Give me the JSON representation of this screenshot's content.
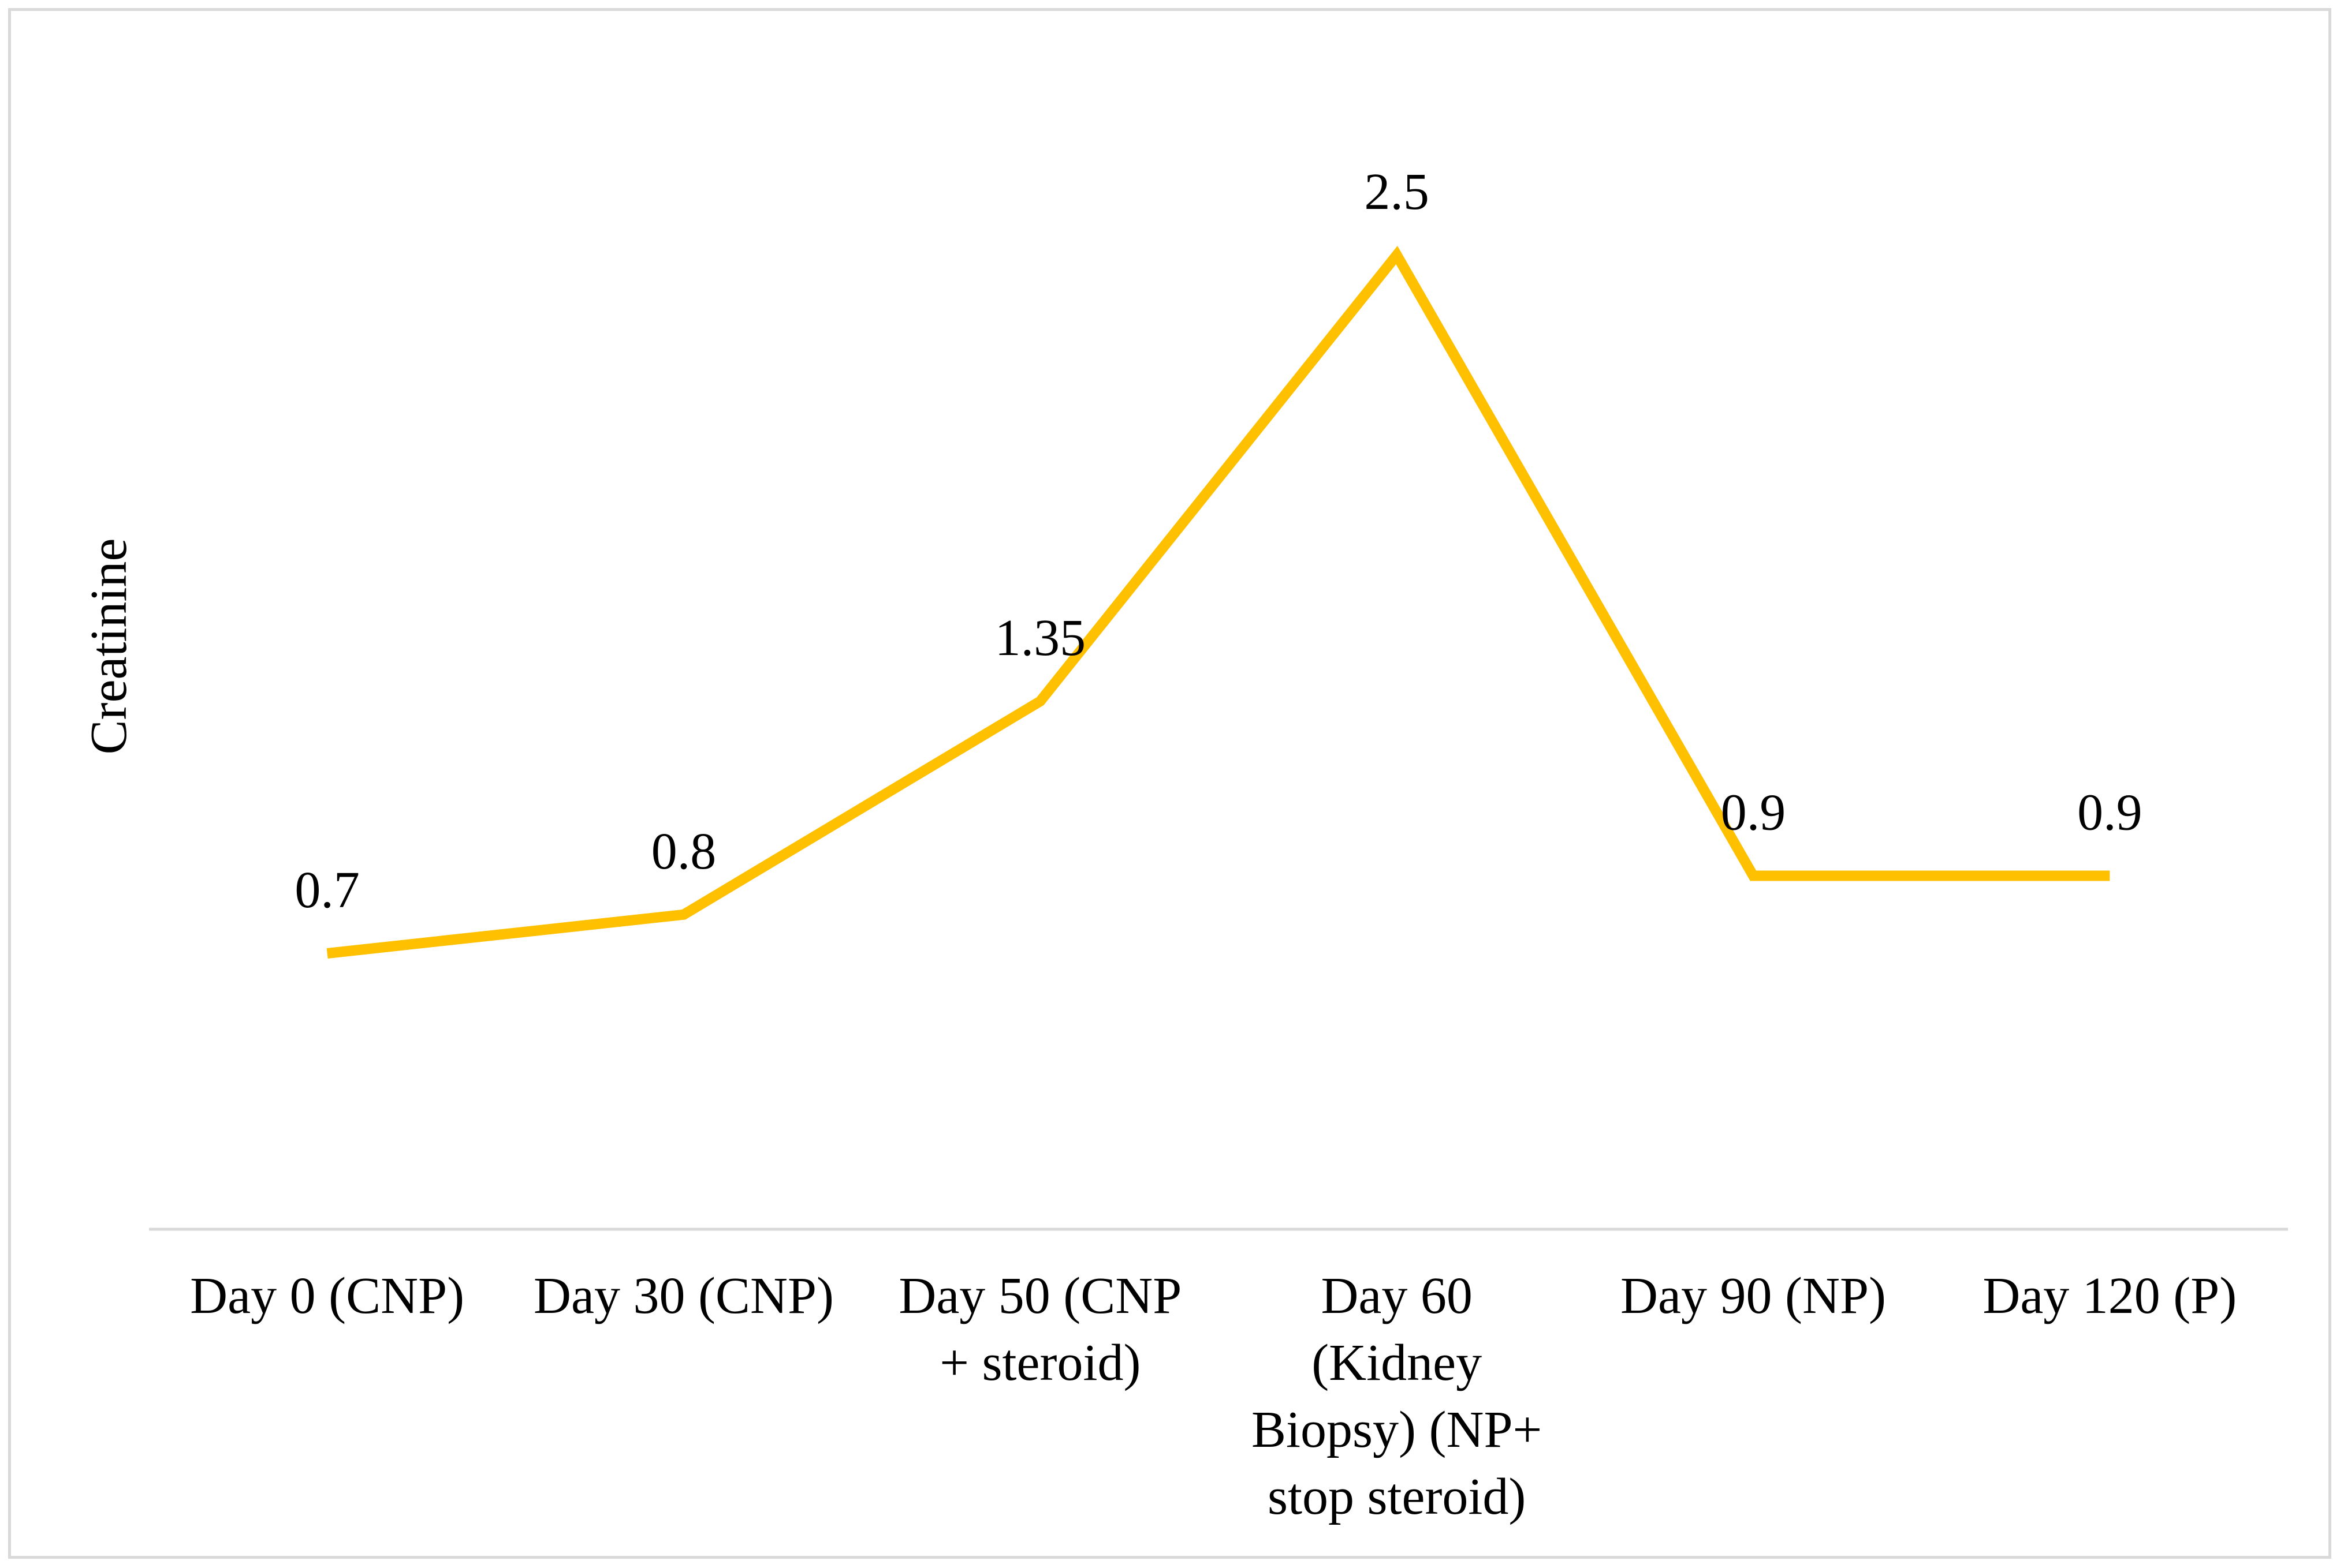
{
  "chart_data": {
    "type": "line",
    "categories": [
      [
        "Day 0 (CNP)"
      ],
      [
        "Day 30 (CNP)"
      ],
      [
        "Day 50 (CNP",
        "+ steroid)"
      ],
      [
        "Day 60",
        "(Kidney",
        "Biopsy) (NP+",
        "stop steroid)"
      ],
      [
        "Day 90 (NP)"
      ],
      [
        "Day 120 (P)"
      ]
    ],
    "series": [
      {
        "values": [
          0.7,
          0.8,
          1.35,
          2.5,
          0.9,
          0.9
        ],
        "color": "#FFC000"
      }
    ],
    "data_labels": [
      "0.7",
      "0.8",
      "1.35",
      "2.5",
      "0.9",
      "0.9"
    ],
    "title": "",
    "xlabel": "",
    "ylabel": "Creatinine",
    "ylim": [
      -0.5,
      3.0
    ],
    "grid": false,
    "legend": "none",
    "axis_color": "#d9d9d9"
  }
}
